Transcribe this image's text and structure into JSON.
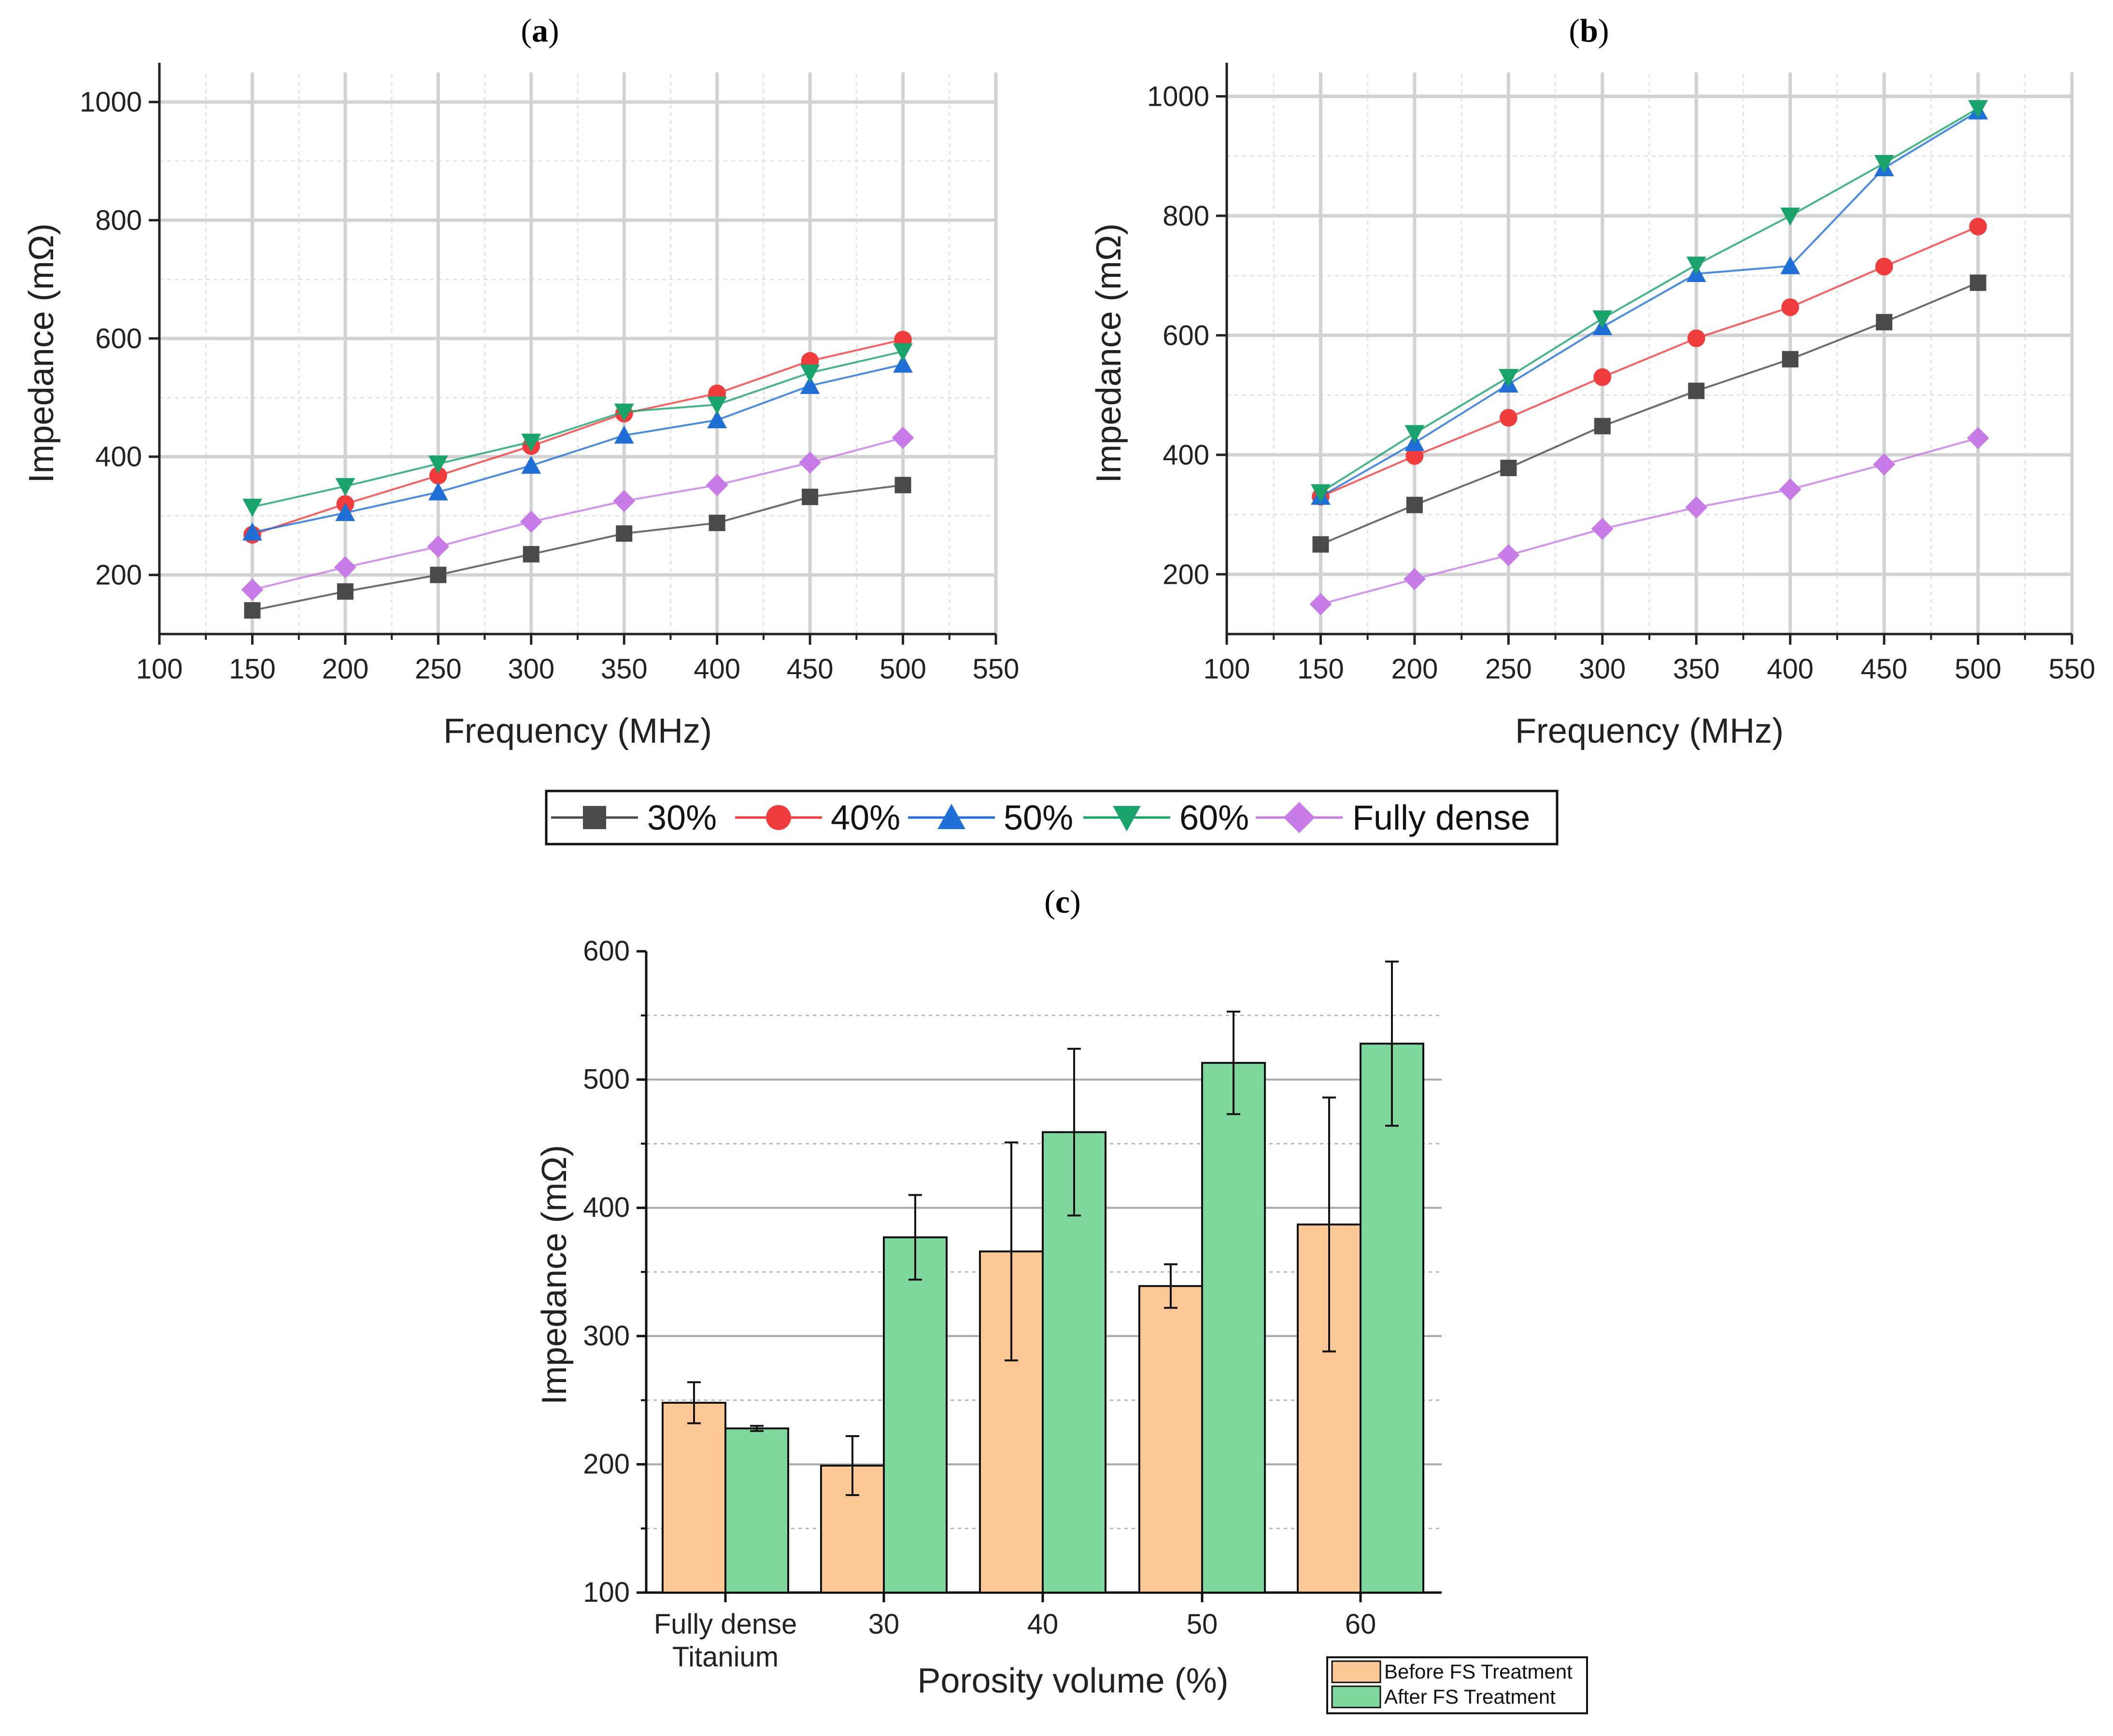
{
  "series_legend": {
    "items": [
      {
        "name": "30%",
        "color": "#4a4a4a",
        "marker": "square"
      },
      {
        "name": "40%",
        "color": "#f03c3c",
        "marker": "circle"
      },
      {
        "name": "50%",
        "color": "#1f6fd6",
        "marker": "triangle-up"
      },
      {
        "name": "60%",
        "color": "#1aa36a",
        "marker": "triangle-down"
      },
      {
        "name": "Fully dense",
        "color": "#c77be6",
        "marker": "diamond"
      }
    ]
  },
  "chart_data": [
    {
      "id": "a",
      "panel_label": "a",
      "type": "line",
      "xlabel": "Frequency (MHz)",
      "ylabel": "Impedance (mΩ)",
      "xlim": [
        100,
        550
      ],
      "ylim": [
        100,
        1050
      ],
      "xticks": [
        100,
        150,
        200,
        250,
        300,
        350,
        400,
        450,
        500,
        550
      ],
      "yticks": [
        200,
        400,
        600,
        800,
        1000
      ],
      "x": [
        150,
        200,
        250,
        300,
        350,
        400,
        450,
        500
      ],
      "series": [
        {
          "name": "30%",
          "values": [
            140,
            172,
            200,
            235,
            270,
            288,
            332,
            352
          ]
        },
        {
          "name": "40%",
          "values": [
            268,
            320,
            368,
            418,
            473,
            507,
            562,
            598
          ]
        },
        {
          "name": "50%",
          "values": [
            272,
            305,
            340,
            385,
            436,
            462,
            520,
            556
          ]
        },
        {
          "name": "60%",
          "values": [
            315,
            350,
            388,
            425,
            476,
            488,
            542,
            578
          ]
        },
        {
          "name": "Fully dense",
          "values": [
            175,
            213,
            248,
            290,
            325,
            352,
            390,
            432
          ]
        }
      ]
    },
    {
      "id": "b",
      "panel_label": "b",
      "type": "line",
      "xlabel": "Frequency (MHz)",
      "ylabel": "Impedance (mΩ)",
      "xlim": [
        100,
        550
      ],
      "ylim": [
        100,
        1040
      ],
      "xticks": [
        100,
        150,
        200,
        250,
        300,
        350,
        400,
        450,
        500,
        550
      ],
      "yticks": [
        200,
        400,
        600,
        800,
        1000
      ],
      "x": [
        150,
        200,
        250,
        300,
        350,
        400,
        450,
        500
      ],
      "series": [
        {
          "name": "30%",
          "values": [
            250,
            316,
            378,
            448,
            507,
            560,
            622,
            688
          ]
        },
        {
          "name": "40%",
          "values": [
            330,
            398,
            462,
            530,
            595,
            647,
            715,
            782
          ]
        },
        {
          "name": "50%",
          "values": [
            330,
            420,
            518,
            614,
            703,
            716,
            880,
            975
          ]
        },
        {
          "name": "60%",
          "values": [
            337,
            436,
            530,
            628,
            718,
            800,
            888,
            980
          ]
        },
        {
          "name": "Fully dense",
          "values": [
            150,
            192,
            232,
            276,
            312,
            342,
            384,
            428
          ]
        }
      ]
    },
    {
      "id": "c",
      "panel_label": "c",
      "type": "bar",
      "xlabel": "Porosity volume (%)",
      "ylabel": "Impedance (mΩ)",
      "ylim": [
        100,
        600
      ],
      "yticks": [
        100,
        200,
        300,
        400,
        500,
        600
      ],
      "categories": [
        [
          "Fully dense",
          "Titanium"
        ],
        [
          "30"
        ],
        [
          "40"
        ],
        [
          "50"
        ],
        [
          "60"
        ]
      ],
      "series": [
        {
          "name": "Before FS Treatment",
          "color": "#fcc896",
          "values": [
            248,
            199,
            366,
            339,
            387
          ],
          "errors": [
            16,
            23,
            85,
            17,
            99
          ]
        },
        {
          "name": "After FS Treatment",
          "color": "#7ed89d",
          "values": [
            228,
            377,
            459,
            513,
            528
          ],
          "errors": [
            2,
            33,
            65,
            40,
            64
          ]
        }
      ]
    }
  ]
}
